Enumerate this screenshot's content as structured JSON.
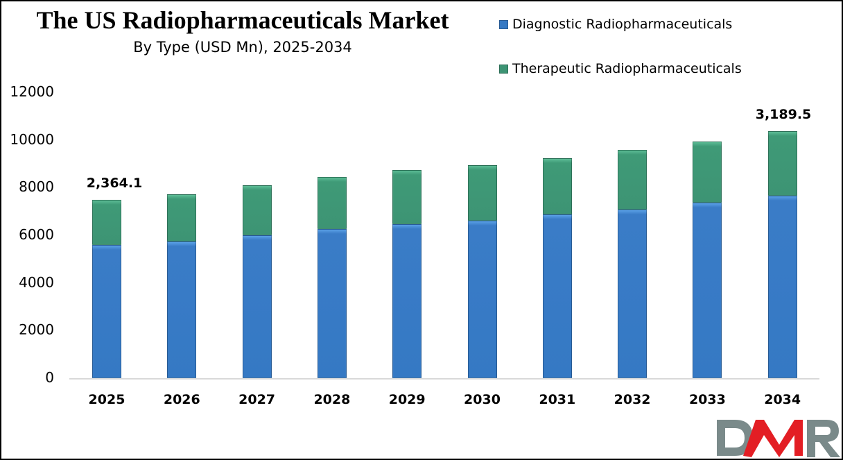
{
  "title": "The US Radiopharmaceuticals Market",
  "subtitle": "By Type (USD Mn), 2025-2034",
  "legend": [
    {
      "label": "Diagnostic Radiopharmaceuticals",
      "color": "#3579c4"
    },
    {
      "label": "Therapeutic Radiopharmaceuticals",
      "color": "#3d9474"
    }
  ],
  "y_ticks": [
    "12000",
    "10000",
    "8000",
    "6000",
    "4000",
    "2000",
    "0"
  ],
  "data_labels": {
    "first": "2,364.1",
    "last": "3,189.5"
  },
  "logo": {
    "text": "DMR",
    "colors": {
      "d": "#7a8a8a",
      "m": "#e31e24",
      "r": "#7a8a8a"
    }
  },
  "chart_data": {
    "type": "bar",
    "stacked": true,
    "title": "The US Radiopharmaceuticals Market",
    "subtitle": "By Type (USD Mn), 2025-2034",
    "xlabel": "",
    "ylabel": "",
    "ylim": [
      0,
      12000
    ],
    "y_ticks": [
      0,
      2000,
      4000,
      6000,
      8000,
      10000,
      12000
    ],
    "grid": false,
    "legend_position": "top-right",
    "categories": [
      "2025",
      "2026",
      "2027",
      "2028",
      "2029",
      "2030",
      "2031",
      "2032",
      "2033",
      "2034"
    ],
    "series": [
      {
        "name": "Diagnostic Radiopharmaceuticals",
        "color": "#3579c4",
        "values": [
          5590,
          5740,
          6000,
          6260,
          6470,
          6610,
          6870,
          7080,
          7370,
          7660
        ]
      },
      {
        "name": "Therapeutic Radiopharmaceuticals",
        "color": "#3d9474",
        "values": [
          1900,
          1980,
          2100,
          2190,
          2270,
          2330,
          2360,
          2500,
          2560,
          2710
        ]
      }
    ],
    "annotations": [
      {
        "category": "2025",
        "text": "2,364.1"
      },
      {
        "category": "2034",
        "text": "3,189.5"
      }
    ]
  }
}
